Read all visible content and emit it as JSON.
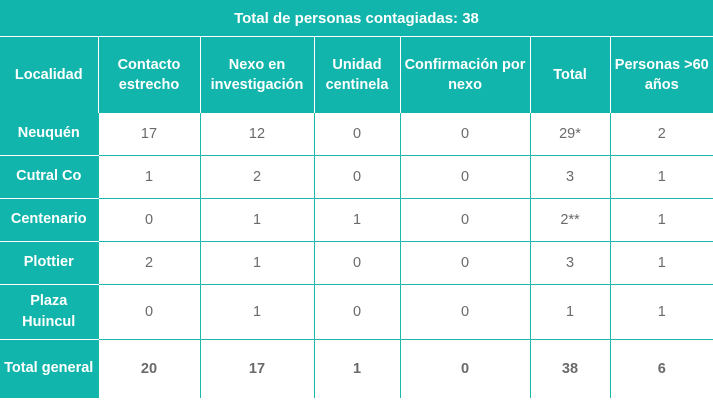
{
  "title": "Total de personas contagiadas: 38",
  "headers": [
    "Localidad",
    "Contacto estrecho",
    "Nexo en investigación",
    "Unidad centinela",
    "Confirmación por nexo",
    "Total",
    "Personas >60 años"
  ],
  "rows": [
    [
      "Neuquén",
      "17",
      "12",
      "0",
      "0",
      "29*",
      "2"
    ],
    [
      "Cutral Co",
      "1",
      "2",
      "0",
      "0",
      "3",
      "1"
    ],
    [
      "Centenario",
      "0",
      "1",
      "1",
      "0",
      "2**",
      "1"
    ],
    [
      "Plottier",
      "2",
      "1",
      "0",
      "0",
      "3",
      "1"
    ],
    [
      "Plaza Huincul",
      "0",
      "1",
      "0",
      "0",
      "1",
      "1"
    ]
  ],
  "total_row": [
    "Total general",
    "20",
    "17",
    "1",
    "0",
    "38",
    "6"
  ],
  "colors": {
    "header_bg": "#11b5ab",
    "text": "#6a6a6a",
    "border": "#1bb8ae"
  }
}
